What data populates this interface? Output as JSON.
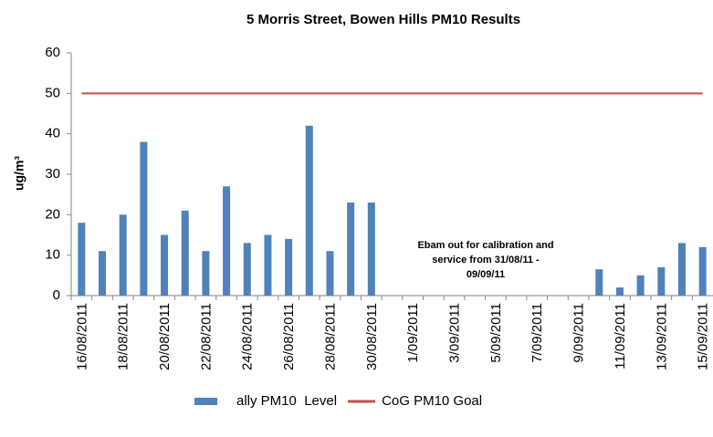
{
  "chart_data": {
    "type": "bar",
    "title": "5 Morris Street, Bowen Hills PM10 Results",
    "y_label": "ug/m³",
    "annotation": [
      "Ebam out for calibration and",
      "service from 31/08/11 -",
      "09/09/11"
    ],
    "categories": [
      "16/08/2011",
      null,
      "18/08/2011",
      null,
      "20/08/2011",
      null,
      "22/08/2011",
      null,
      "24/08/2011",
      null,
      "26/08/2011",
      null,
      "28/08/2011",
      null,
      "30/08/2011",
      null,
      "1/09/2011",
      null,
      "3/09/2011",
      null,
      "5/09/2011",
      null,
      "7/09/2011",
      null,
      "9/09/2011",
      null,
      "11/09/2011",
      null,
      "13/09/2011",
      null,
      "15/09/2011"
    ],
    "series": [
      {
        "name": "ally PM10  Level",
        "type": "bar",
        "color": "#4f81bd",
        "values": [
          18,
          11,
          20,
          38,
          15,
          21,
          11,
          27,
          13,
          15,
          14,
          42,
          11,
          23,
          23,
          null,
          null,
          null,
          null,
          null,
          null,
          null,
          null,
          null,
          null,
          6.5,
          2,
          5,
          7,
          13,
          12
        ]
      },
      {
        "name": "CoG PM10 Goal",
        "type": "line",
        "color": "#c0504d",
        "values": [
          50,
          50,
          50,
          50,
          50,
          50,
          50,
          50,
          50,
          50,
          50,
          50,
          50,
          50,
          50,
          50,
          50,
          50,
          50,
          50,
          50,
          50,
          50,
          50,
          50,
          50,
          50,
          50,
          50,
          50,
          50
        ]
      }
    ],
    "ylim": [
      0,
      60
    ],
    "yticks": [
      0,
      10,
      20,
      30,
      40,
      50,
      60
    ],
    "grid": false,
    "legend": "bottom"
  }
}
